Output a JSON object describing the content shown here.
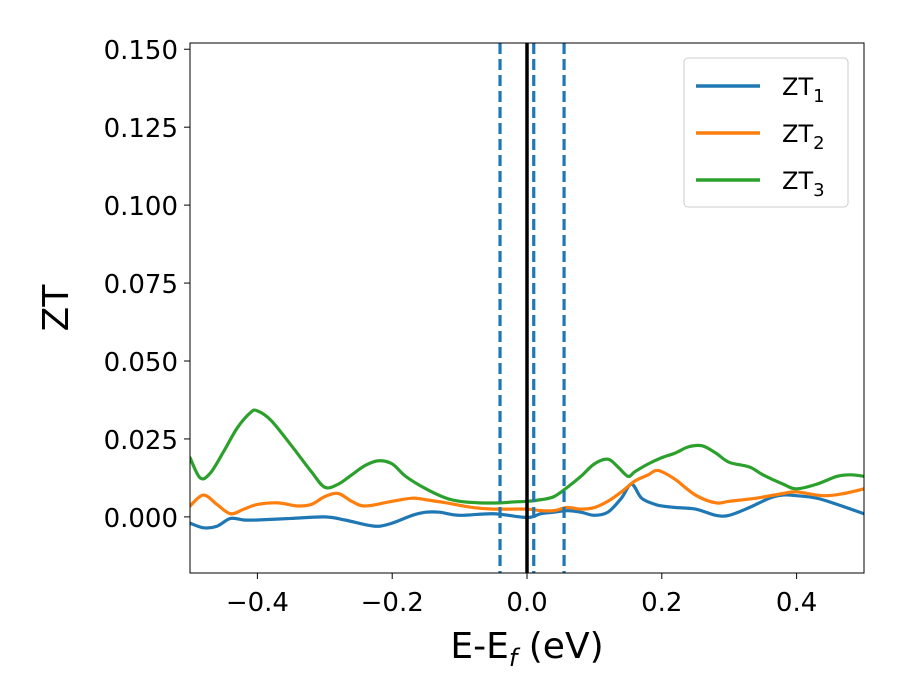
{
  "chart_data": {
    "type": "line",
    "xlabel": "E-E_f (eV)",
    "xlabel_parts": {
      "main": "E-E",
      "sub": "f",
      "rest": " (eV)"
    },
    "ylabel": "ZT",
    "xlim": [
      -0.5,
      0.5
    ],
    "ylim": [
      -0.018,
      0.152
    ],
    "xticks": [
      -0.4,
      -0.2,
      0.0,
      0.2,
      0.4
    ],
    "xtick_labels": [
      "−0.4",
      "−0.2",
      "0.0",
      "0.2",
      "0.4"
    ],
    "yticks": [
      0.0,
      0.025,
      0.05,
      0.075,
      0.1,
      0.125,
      0.15
    ],
    "ytick_labels": [
      "0.000",
      "0.025",
      "0.050",
      "0.075",
      "0.100",
      "0.125",
      "0.150"
    ],
    "grid": false,
    "legend_position": "top-right",
    "vertical_lines": [
      {
        "x": 0.0,
        "style": "solid",
        "color": "#000000"
      },
      {
        "x": -0.04,
        "style": "dashed",
        "color": "#1f77b4"
      },
      {
        "x": 0.01,
        "style": "dashed",
        "color": "#1f77b4"
      },
      {
        "x": 0.055,
        "style": "dashed",
        "color": "#1f77b4"
      }
    ],
    "series": [
      {
        "name": "ZT_1",
        "label_main": "ZT",
        "label_sub": "1",
        "color": "#1f77b4",
        "x": [
          -0.5,
          -0.48,
          -0.46,
          -0.44,
          -0.42,
          -0.4,
          -0.35,
          -0.3,
          -0.27,
          -0.24,
          -0.22,
          -0.2,
          -0.17,
          -0.15,
          -0.13,
          -0.1,
          -0.05,
          0.0,
          0.02,
          0.04,
          0.06,
          0.08,
          0.1,
          0.12,
          0.14,
          0.155,
          0.17,
          0.19,
          0.2,
          0.22,
          0.25,
          0.28,
          0.3,
          0.33,
          0.36,
          0.38,
          0.4,
          0.43,
          0.46,
          0.5
        ],
        "y": [
          -0.002,
          -0.0035,
          -0.003,
          -0.0005,
          -0.001,
          -0.001,
          -0.0005,
          0.0,
          -0.001,
          -0.0025,
          -0.003,
          -0.002,
          0.0005,
          0.0015,
          0.0015,
          0.0005,
          0.001,
          -0.0002,
          0.001,
          0.0015,
          0.002,
          0.0015,
          0.0005,
          0.0015,
          0.006,
          0.0105,
          0.006,
          0.004,
          0.0035,
          0.003,
          0.0025,
          0.0005,
          0.0005,
          0.003,
          0.006,
          0.007,
          0.0068,
          0.006,
          0.004,
          0.001
        ]
      },
      {
        "name": "ZT_2",
        "label_main": "ZT",
        "label_sub": "2",
        "color": "#ff7f0e",
        "x": [
          -0.5,
          -0.48,
          -0.46,
          -0.44,
          -0.42,
          -0.4,
          -0.37,
          -0.34,
          -0.32,
          -0.3,
          -0.28,
          -0.26,
          -0.24,
          -0.2,
          -0.17,
          -0.15,
          -0.12,
          -0.08,
          -0.05,
          0.0,
          0.02,
          0.04,
          0.06,
          0.08,
          0.1,
          0.12,
          0.14,
          0.16,
          0.18,
          0.19,
          0.2,
          0.22,
          0.25,
          0.28,
          0.3,
          0.34,
          0.38,
          0.4,
          0.44,
          0.47,
          0.5
        ],
        "y": [
          0.0035,
          0.007,
          0.004,
          0.001,
          0.0025,
          0.004,
          0.0045,
          0.0035,
          0.004,
          0.0065,
          0.0075,
          0.005,
          0.0035,
          0.005,
          0.006,
          0.0055,
          0.0045,
          0.003,
          0.0025,
          0.0025,
          0.002,
          0.002,
          0.003,
          0.0025,
          0.003,
          0.005,
          0.008,
          0.0115,
          0.0135,
          0.0148,
          0.0145,
          0.012,
          0.007,
          0.0045,
          0.005,
          0.006,
          0.0075,
          0.008,
          0.0068,
          0.0075,
          0.009
        ]
      },
      {
        "name": "ZT_3",
        "label_main": "ZT",
        "label_sub": "3",
        "color": "#2ca02c",
        "x": [
          -0.5,
          -0.485,
          -0.47,
          -0.45,
          -0.43,
          -0.41,
          -0.4,
          -0.38,
          -0.35,
          -0.32,
          -0.3,
          -0.28,
          -0.26,
          -0.24,
          -0.22,
          -0.2,
          -0.18,
          -0.15,
          -0.12,
          -0.1,
          -0.07,
          -0.04,
          -0.02,
          0.0,
          0.02,
          0.04,
          0.06,
          0.08,
          0.1,
          0.12,
          0.135,
          0.15,
          0.16,
          0.18,
          0.2,
          0.22,
          0.24,
          0.26,
          0.28,
          0.3,
          0.33,
          0.35,
          0.38,
          0.4,
          0.43,
          0.46,
          0.48,
          0.5
        ],
        "y": [
          0.019,
          0.0125,
          0.014,
          0.021,
          0.0285,
          0.0335,
          0.034,
          0.031,
          0.023,
          0.0145,
          0.0095,
          0.0105,
          0.0135,
          0.0165,
          0.018,
          0.017,
          0.013,
          0.009,
          0.006,
          0.005,
          0.0045,
          0.0045,
          0.0048,
          0.005,
          0.0055,
          0.0065,
          0.0095,
          0.013,
          0.017,
          0.0185,
          0.016,
          0.013,
          0.0145,
          0.017,
          0.019,
          0.0205,
          0.0225,
          0.0228,
          0.0205,
          0.0175,
          0.016,
          0.0135,
          0.0105,
          0.009,
          0.0105,
          0.013,
          0.0135,
          0.013
        ]
      }
    ]
  }
}
